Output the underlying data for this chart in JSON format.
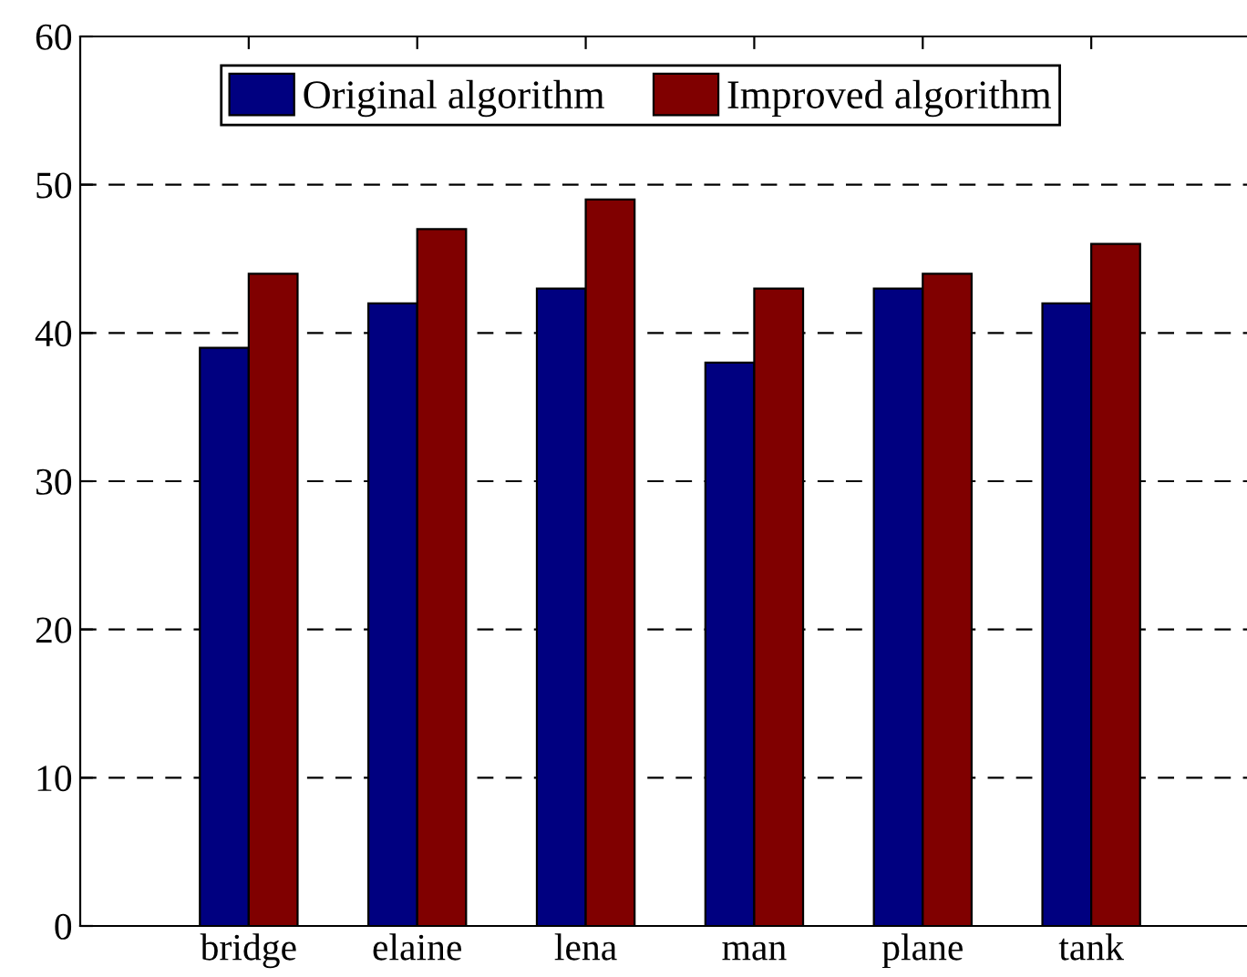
{
  "chart_data": {
    "type": "bar",
    "categories": [
      "bridge",
      "elaine",
      "lena",
      "man",
      "plane",
      "tank"
    ],
    "series": [
      {
        "name": "Original algorithm",
        "color": "#000080",
        "values": [
          39,
          42,
          43,
          38,
          43,
          42
        ]
      },
      {
        "name": "Improved algorithm",
        "color": "#800000",
        "values": [
          44,
          47,
          49,
          43,
          44,
          46
        ]
      }
    ],
    "ylim": [
      0,
      60
    ],
    "yticks": [
      0,
      10,
      20,
      30,
      40,
      50,
      60
    ],
    "grid": "y",
    "legend": "top"
  }
}
